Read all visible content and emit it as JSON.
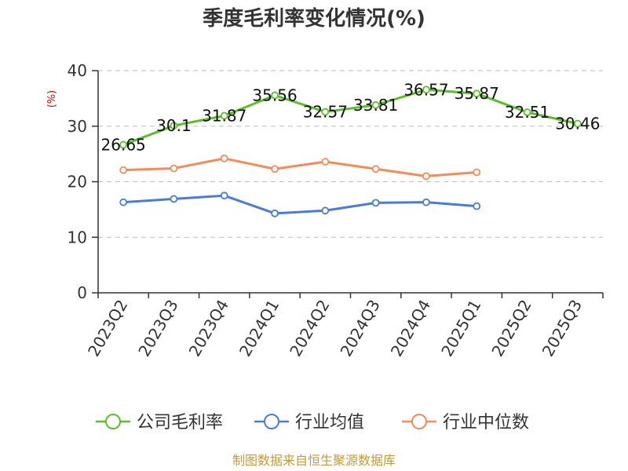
{
  "chart_data": {
    "type": "line",
    "title": "季度毛利率变化情况(%)",
    "ylabel": "(%)",
    "xlabel": "",
    "categories": [
      "2023Q2",
      "2023Q3",
      "2023Q4",
      "2024Q1",
      "2024Q2",
      "2024Q3",
      "2024Q4",
      "2025Q1",
      "2025Q2",
      "2025Q3"
    ],
    "ylim": [
      0,
      40
    ],
    "yticks": [
      0,
      10,
      20,
      30,
      40
    ],
    "grid": true,
    "legend_position": "bottom",
    "series": [
      {
        "name": "公司毛利率",
        "color": "#5cbf2a",
        "values": [
          26.65,
          30.1,
          31.87,
          35.56,
          32.57,
          33.81,
          36.57,
          35.87,
          32.51,
          30.46
        ],
        "labels": [
          "26.65",
          "30.1",
          "31.87",
          "35.56",
          "32.57",
          "33.81",
          "36.57",
          "35.87",
          "32.51",
          "30.46"
        ]
      },
      {
        "name": "行业均值",
        "color": "#4a7bd8",
        "values": [
          16.3,
          16.9,
          17.5,
          14.3,
          14.8,
          16.2,
          16.3,
          15.6,
          null,
          null
        ]
      },
      {
        "name": "行业中位数",
        "color": "#f28c5a",
        "values": [
          22.1,
          22.4,
          24.2,
          22.3,
          23.6,
          22.3,
          21.0,
          21.7,
          null,
          null
        ]
      }
    ]
  },
  "source_text": "制图数据来自恒生聚源数据库"
}
